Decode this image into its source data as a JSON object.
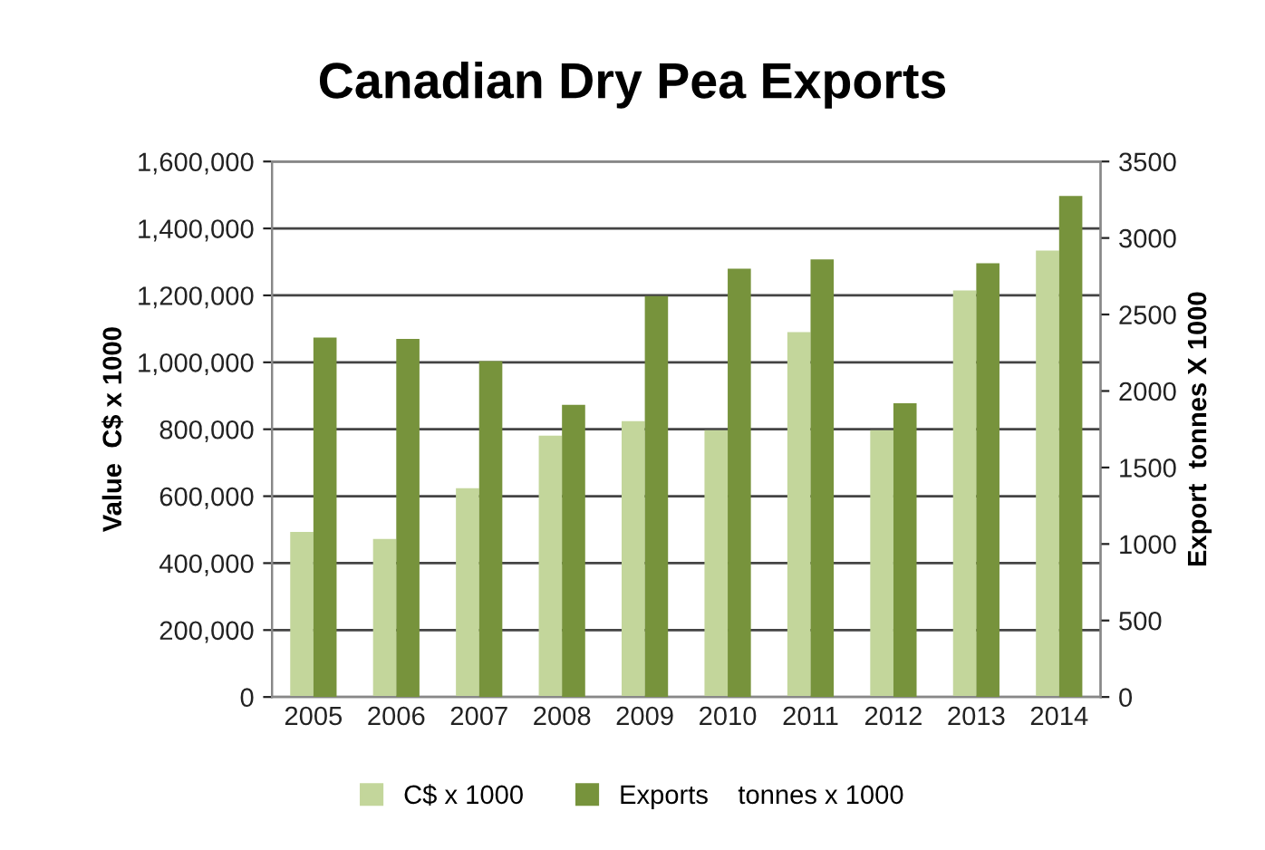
{
  "chart_data": {
    "type": "bar",
    "title": "Canadian Dry Pea Exports",
    "ylabel": "Value  C$ x 1000",
    "y2label": "Export  tonnes X 1000",
    "categories": [
      "2005",
      "2006",
      "2007",
      "2008",
      "2009",
      "2010",
      "2011",
      "2012",
      "2013",
      "2014"
    ],
    "series": [
      {
        "name": "C$ x 1000",
        "color": "#c3d69b",
        "values": [
          493000,
          472000,
          624000,
          781000,
          824000,
          797000,
          1090000,
          797000,
          1215000,
          1334000
        ]
      },
      {
        "name": "Exports    tonnes x 1000",
        "color": "#77933c",
        "axis": "y2",
        "values": [
          2350,
          2340,
          2195,
          1910,
          2620,
          2800,
          2860,
          1920,
          2835,
          3275
        ]
      }
    ],
    "ylim": [
      0,
      1600000
    ],
    "yticks": [
      {
        "value": 0,
        "label": "0"
      },
      {
        "value": 200000,
        "label": "200,000"
      },
      {
        "value": 400000,
        "label": "400,000"
      },
      {
        "value": 600000,
        "label": "600,000"
      },
      {
        "value": 800000,
        "label": "800,000"
      },
      {
        "value": 1000000,
        "label": "1,000,000"
      },
      {
        "value": 1200000,
        "label": "1,200,000"
      },
      {
        "value": 1400000,
        "label": "1,400,000"
      },
      {
        "value": 1600000,
        "label": "1,600,000"
      }
    ],
    "y2lim": [
      0,
      3500
    ],
    "y2ticks": [
      0,
      500,
      1000,
      1500,
      2000,
      2500,
      3000,
      3500
    ],
    "grid": "y",
    "legend": "bottom"
  }
}
